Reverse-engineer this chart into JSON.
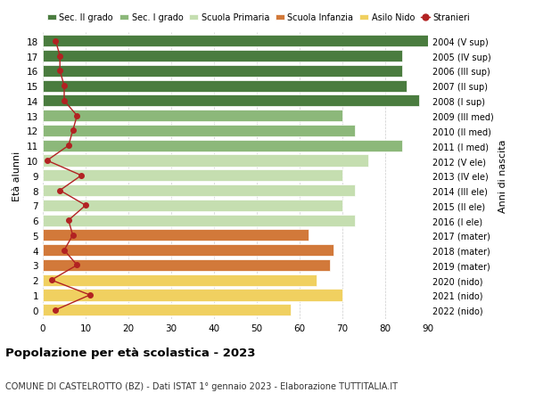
{
  "ages": [
    18,
    17,
    16,
    15,
    14,
    13,
    12,
    11,
    10,
    9,
    8,
    7,
    6,
    5,
    4,
    3,
    2,
    1,
    0
  ],
  "right_labels": [
    "2004 (V sup)",
    "2005 (IV sup)",
    "2006 (III sup)",
    "2007 (II sup)",
    "2008 (I sup)",
    "2009 (III med)",
    "2010 (II med)",
    "2011 (I med)",
    "2012 (V ele)",
    "2013 (IV ele)",
    "2014 (III ele)",
    "2015 (II ele)",
    "2016 (I ele)",
    "2017 (mater)",
    "2018 (mater)",
    "2019 (mater)",
    "2020 (nido)",
    "2021 (nido)",
    "2022 (nido)"
  ],
  "bar_values": [
    90,
    84,
    84,
    85,
    88,
    70,
    73,
    84,
    76,
    70,
    73,
    70,
    73,
    62,
    68,
    67,
    64,
    70,
    58
  ],
  "bar_colors": [
    "#4a7c3f",
    "#4a7c3f",
    "#4a7c3f",
    "#4a7c3f",
    "#4a7c3f",
    "#8cb87a",
    "#8cb87a",
    "#8cb87a",
    "#c5deb0",
    "#c5deb0",
    "#c5deb0",
    "#c5deb0",
    "#c5deb0",
    "#d2793a",
    "#d2793a",
    "#d2793a",
    "#f0d060",
    "#f0d060",
    "#f0d060"
  ],
  "stranieri_values": [
    3,
    4,
    4,
    5,
    5,
    8,
    7,
    6,
    1,
    9,
    4,
    10,
    6,
    7,
    5,
    8,
    2,
    11,
    3
  ],
  "legend_labels": [
    "Sec. II grado",
    "Sec. I grado",
    "Scuola Primaria",
    "Scuola Infanzia",
    "Asilo Nido",
    "Stranieri"
  ],
  "legend_colors": [
    "#4a7c3f",
    "#8cb87a",
    "#c5deb0",
    "#d2793a",
    "#f0d060",
    "#b22222"
  ],
  "ylabel_left": "Età alunni",
  "ylabel_right": "Anni di nascita",
  "title": "Popolazione per età scolastica - 2023",
  "subtitle": "COMUNE DI CASTELROTTO (BZ) - Dati ISTAT 1° gennaio 2023 - Elaborazione TUTTITALIA.IT",
  "xlim": [
    0,
    90
  ],
  "xticks": [
    0,
    10,
    20,
    30,
    40,
    50,
    60,
    70,
    80,
    90
  ],
  "bg_color": "#ffffff",
  "bar_height": 0.78
}
